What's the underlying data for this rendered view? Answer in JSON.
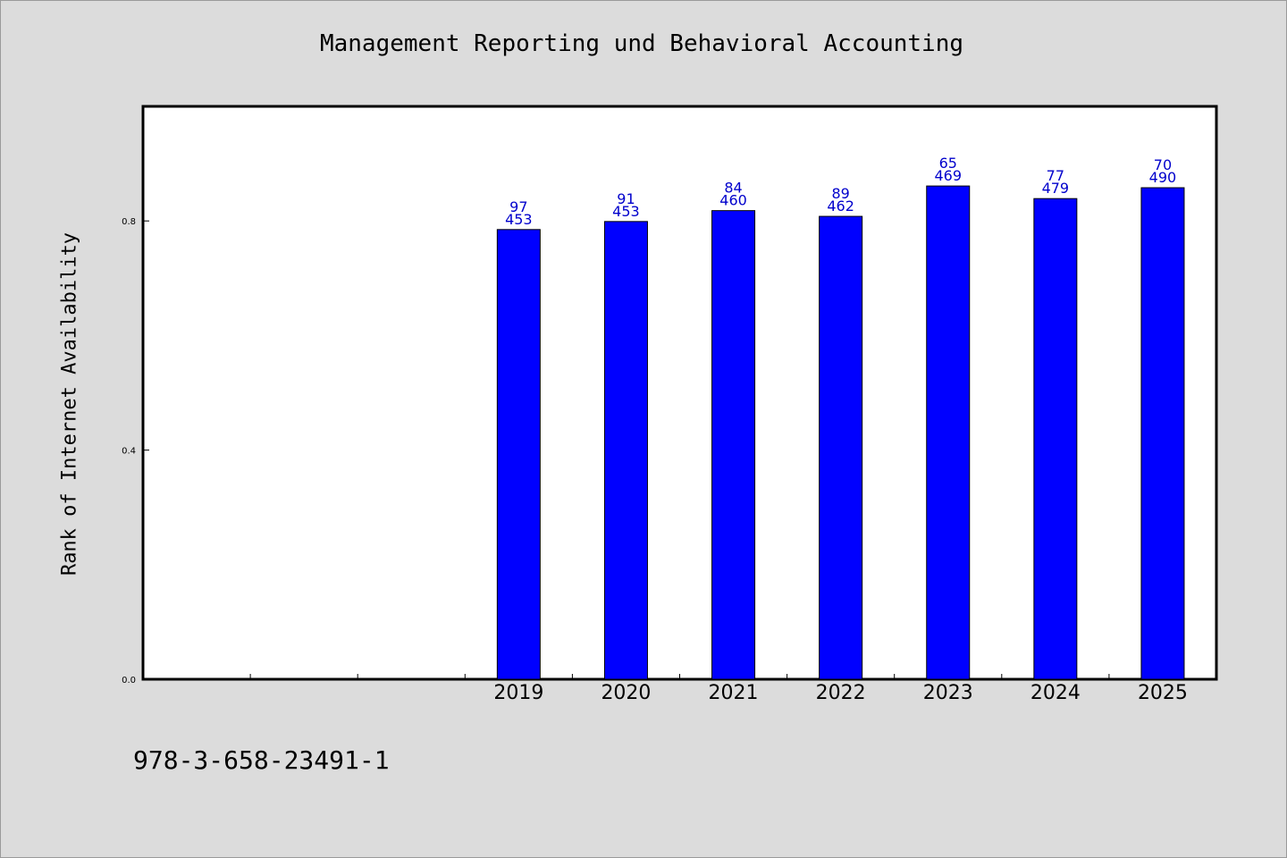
{
  "chart_data": {
    "type": "bar",
    "title": "Management Reporting und Behavioral Accounting",
    "ylabel": "Rank of Internet Availability",
    "xlabel": "",
    "categories": [
      "",
      "",
      "",
      "2019",
      "2020",
      "2021",
      "2022",
      "2023",
      "2024",
      "2025"
    ],
    "values": [
      null,
      null,
      null,
      0.785,
      0.799,
      0.818,
      0.808,
      0.861,
      0.839,
      0.858
    ],
    "labels_top": [
      "",
      "",
      "",
      "97",
      "91",
      "84",
      "89",
      "65",
      "77",
      "70"
    ],
    "labels_bottom": [
      "",
      "",
      "",
      "453",
      "453",
      "460",
      "462",
      "469",
      "479",
      "490"
    ],
    "ylim": [
      0,
      1.0
    ],
    "yticks": [
      {
        "value": 0.0,
        "label": "0.0"
      },
      {
        "value": 0.4,
        "label": "0.4"
      },
      {
        "value": 0.8,
        "label": "0.8"
      }
    ],
    "grid": false,
    "colors": {
      "bar": "#0000ff",
      "bar_edge": "#000000",
      "data_label": "#0000cc",
      "plot_bg": "#ffffff",
      "figure_bg": "#dcdcdc"
    }
  },
  "footer": {
    "isbn": "978-3-658-23491-1"
  }
}
